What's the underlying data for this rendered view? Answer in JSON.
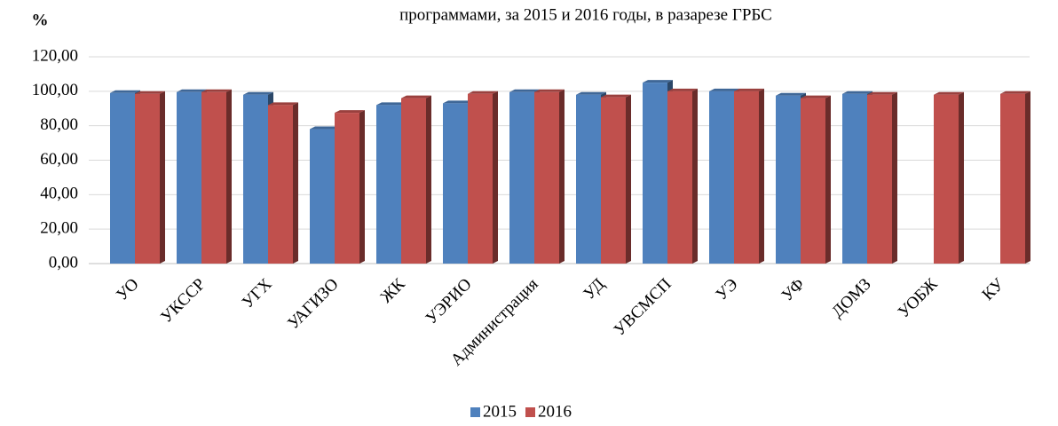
{
  "chart_data": {
    "type": "bar3d",
    "title": "программами, за 2015 и 2016 годы, в разарезе ГРБС",
    "ylabel": "%",
    "categories": [
      "УО",
      "УКССР",
      "УГХ",
      "УАГИЗО",
      "ЖК",
      "УЭРИО",
      "Администрация",
      "УД",
      "УВСМСП",
      "УЭ",
      "УФ",
      "ДОМЗ",
      "УОБЖ",
      "КУ"
    ],
    "series": [
      {
        "name": "2015",
        "color": "#4f81bd",
        "values": [
          99,
          99.5,
          98,
          78,
          92,
          93,
          99.5,
          98,
          105,
          100,
          97.5,
          98.5,
          null,
          null
        ]
      },
      {
        "name": "2016",
        "color": "#c0504d",
        "values": [
          98.5,
          99.5,
          92,
          87.5,
          96,
          98.5,
          99.5,
          96.5,
          100,
          100,
          96,
          98,
          98,
          98.5
        ]
      }
    ],
    "ylim": [
      0,
      120
    ],
    "yticks": [
      {
        "value": 0,
        "label": "0,00"
      },
      {
        "value": 20,
        "label": "20,00"
      },
      {
        "value": 40,
        "label": "40,00"
      },
      {
        "value": 60,
        "label": "60,00"
      },
      {
        "value": 80,
        "label": "80,00"
      },
      {
        "value": 100,
        "label": "100,00"
      },
      {
        "value": 120,
        "label": "120,00"
      }
    ],
    "grid": true,
    "legend": "bottom"
  }
}
